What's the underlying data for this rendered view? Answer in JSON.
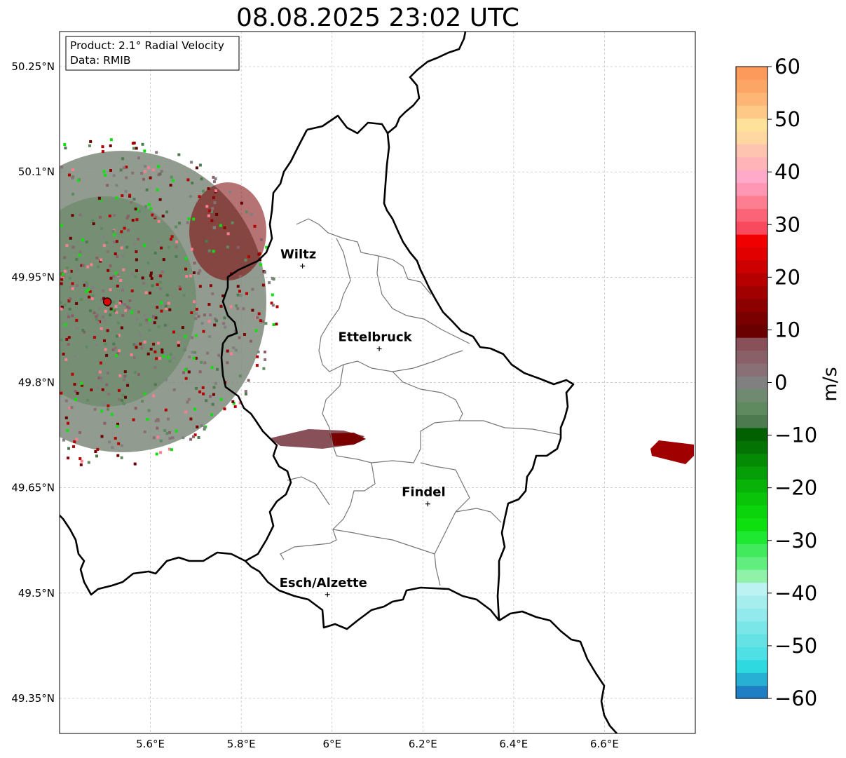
{
  "title": "08.08.2025 23:02 UTC",
  "info_box": {
    "product": "Product: 2.1° Radial Velocity",
    "data": "Data: RMIB"
  },
  "map": {
    "lon_range": [
      5.4,
      6.8
    ],
    "lat_range": [
      49.3,
      50.3
    ],
    "lat_ticks": [
      {
        "value": 50.25,
        "label": "50.25°N"
      },
      {
        "value": 50.1,
        "label": "50.1°N"
      },
      {
        "value": 49.95,
        "label": "49.95°N"
      },
      {
        "value": 49.8,
        "label": "49.8°N"
      },
      {
        "value": 49.65,
        "label": "49.65°N"
      },
      {
        "value": 49.5,
        "label": "49.5°N"
      },
      {
        "value": 49.35,
        "label": "49.35°N"
      }
    ],
    "lon_ticks": [
      {
        "value": 5.6,
        "label": "5.6°E"
      },
      {
        "value": 5.8,
        "label": "5.8°E"
      },
      {
        "value": 6.0,
        "label": "6°E"
      },
      {
        "value": 6.2,
        "label": "6.2°E"
      },
      {
        "value": 6.4,
        "label": "6.4°E"
      },
      {
        "value": 6.6,
        "label": "6.6°E"
      }
    ],
    "gridlines": true,
    "radar_site": {
      "lon": 5.505,
      "lat": 49.915
    },
    "cities": [
      {
        "name": "Wiltz",
        "lon": 5.935,
        "lat": 49.966
      },
      {
        "name": "Ettelbruck",
        "lon": 6.104,
        "lat": 49.848
      },
      {
        "name": "Findel",
        "lon": 6.211,
        "lat": 49.627
      },
      {
        "name": "Esch/Alzette",
        "lon": 5.99,
        "lat": 49.498
      }
    ]
  },
  "colorbar": {
    "label": "m/s",
    "min": -60,
    "max": 60,
    "ticks": [
      {
        "value": 60,
        "label": "60"
      },
      {
        "value": 50,
        "label": "50"
      },
      {
        "value": 40,
        "label": "40"
      },
      {
        "value": 30,
        "label": "30"
      },
      {
        "value": 20,
        "label": "20"
      },
      {
        "value": 10,
        "label": "10"
      },
      {
        "value": 0,
        "label": "0"
      },
      {
        "value": -10,
        "label": "−10"
      },
      {
        "value": -20,
        "label": "−20"
      },
      {
        "value": -30,
        "label": "−30"
      },
      {
        "value": -40,
        "label": "−40"
      },
      {
        "value": -50,
        "label": "−50"
      },
      {
        "value": -60,
        "label": "−60"
      }
    ],
    "colors": [
      "#1f7fc4",
      "#28b0d4",
      "#2fd9e0",
      "#4ee0e4",
      "#64e2e4",
      "#7ae6e8",
      "#92eaec",
      "#a6eeee",
      "#bcf2f2",
      "#8ff2a8",
      "#62ee7e",
      "#40ea5c",
      "#1ee832",
      "#0ee010",
      "#0cd40c",
      "#0ac40a",
      "#08b208",
      "#069e06",
      "#058a05",
      "#037403",
      "#026002",
      "#4e7a50",
      "#5f8a60",
      "#708a72",
      "#808080",
      "#887076",
      "#8a6068",
      "#885058",
      "#6a0000",
      "#7a0000",
      "#8c0000",
      "#a00000",
      "#b60000",
      "#cc0000",
      "#e00000",
      "#f00000",
      "#f84a5c",
      "#fa6476",
      "#fc7e90",
      "#fe96b4",
      "#ffaac8",
      "#ffb4b8",
      "#ffc4b0",
      "#fed8a0",
      "#fee29a",
      "#fec886",
      "#fdb676",
      "#fca666",
      "#fb9a5a"
    ]
  }
}
